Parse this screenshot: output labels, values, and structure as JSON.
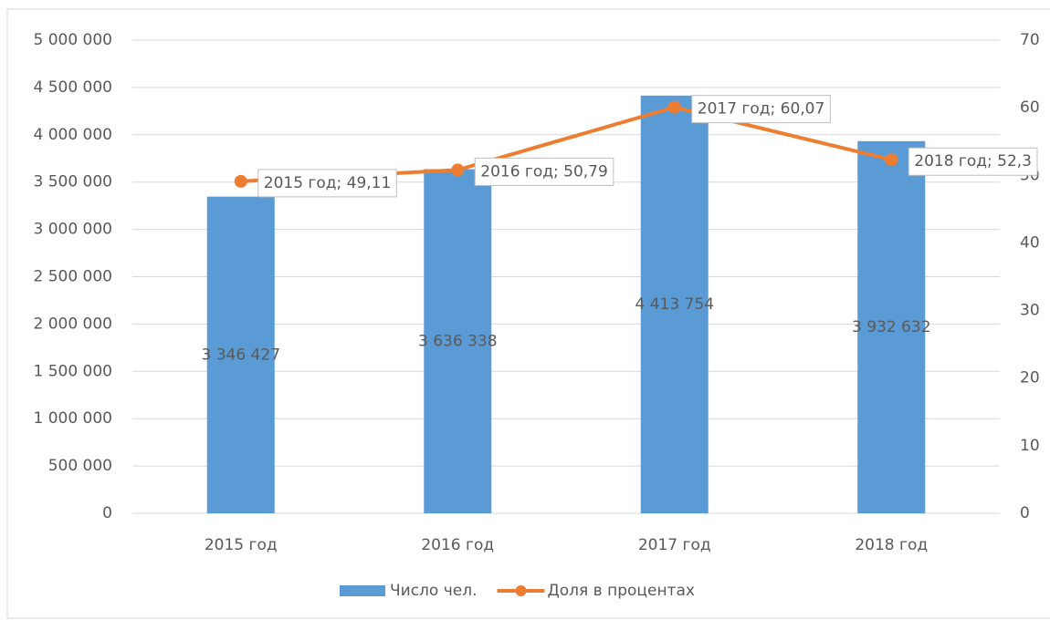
{
  "chart_data": {
    "type": "bar",
    "categories": [
      "2015 год",
      "2016 год",
      "2017 год",
      "2018 год"
    ],
    "series": [
      {
        "name": "Число чел.",
        "type": "bar",
        "color": "#5b9bd5",
        "values": [
          3346427,
          3636338,
          4413754,
          3932632
        ],
        "value_labels": [
          "3 346 427",
          "3 636 338",
          "4 413 754",
          "3 932 632"
        ]
      },
      {
        "name": "Доля в процентах",
        "type": "line",
        "axis": "y2",
        "color": "#ed7d31",
        "values": [
          49.11,
          50.79,
          60.07,
          52.3
        ],
        "value_labels": [
          "2015 год; 49,11",
          "2016 год; 50,79",
          "2017 год; 60,07",
          "2018 год; 52,3"
        ]
      }
    ],
    "ylim": [
      0,
      5000000
    ],
    "yticks": [
      0,
      {
        "value": 500000,
        "label": "500 000"
      },
      {
        "value": 1000000,
        "label": "1 000 000"
      },
      {
        "value": 1500000,
        "label": "1 500 000"
      },
      {
        "value": 2000000,
        "label": "2 000 000"
      },
      {
        "value": 2500000,
        "label": "2 500 000"
      },
      {
        "value": 3000000,
        "label": "3 000 000"
      },
      {
        "value": 3500000,
        "label": "3 500 000"
      },
      {
        "value": 4000000,
        "label": "4 000 000"
      },
      {
        "value": 4500000,
        "label": "4 500 000"
      },
      {
        "value": 5000000,
        "label": "5 000 000"
      }
    ],
    "y2lim": [
      0,
      70
    ],
    "y2ticks": [
      0,
      10,
      20,
      30,
      40,
      50,
      60,
      70
    ],
    "grid": true,
    "legend": "bottom"
  }
}
